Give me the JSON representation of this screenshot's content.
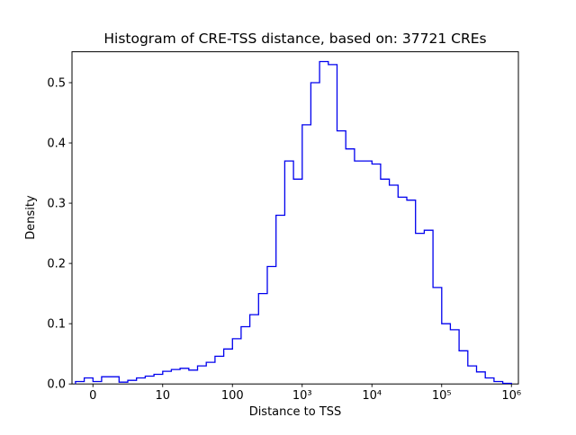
{
  "window": {
    "background": "#ffffff"
  },
  "chart_data": {
    "type": "bar",
    "subtype": "step-histogram",
    "title": "Histogram of CRE-TSS distance, based on: 37721 CREs",
    "sample_count": "37721",
    "xlabel": "Distance to TSS",
    "ylabel": "Density",
    "x_scale": "log10-decades (symlog, 0 shown at left)",
    "x_tick_labels": [
      "0",
      "10",
      "100",
      "10³",
      "10⁴",
      "10⁵",
      "10⁶"
    ],
    "x_tick_positions_log10": [
      0,
      1,
      2,
      3,
      4,
      5,
      6
    ],
    "y_tick_values": [
      0.0,
      0.1,
      0.2,
      0.3,
      0.4,
      0.5
    ],
    "xlim_log10": [
      -0.3,
      6.1
    ],
    "ylim": [
      0,
      0.5513
    ],
    "grid": "off",
    "legend": "none",
    "line_color": "#0000ee",
    "axis_color": "#000000",
    "bin_start_log10": -0.25,
    "bin_width_log10": 0.125,
    "densities": [
      0.004,
      0.01,
      0.004,
      0.012,
      0.012,
      0.003,
      0.006,
      0.01,
      0.013,
      0.016,
      0.021,
      0.024,
      0.026,
      0.023,
      0.03,
      0.036,
      0.046,
      0.058,
      0.075,
      0.095,
      0.115,
      0.15,
      0.195,
      0.28,
      0.37,
      0.34,
      0.43,
      0.5,
      0.535,
      0.53,
      0.42,
      0.39,
      0.37,
      0.37,
      0.365,
      0.34,
      0.33,
      0.31,
      0.305,
      0.25,
      0.255,
      0.16,
      0.1,
      0.09,
      0.055,
      0.03,
      0.02,
      0.01,
      0.004,
      0.001
    ]
  }
}
